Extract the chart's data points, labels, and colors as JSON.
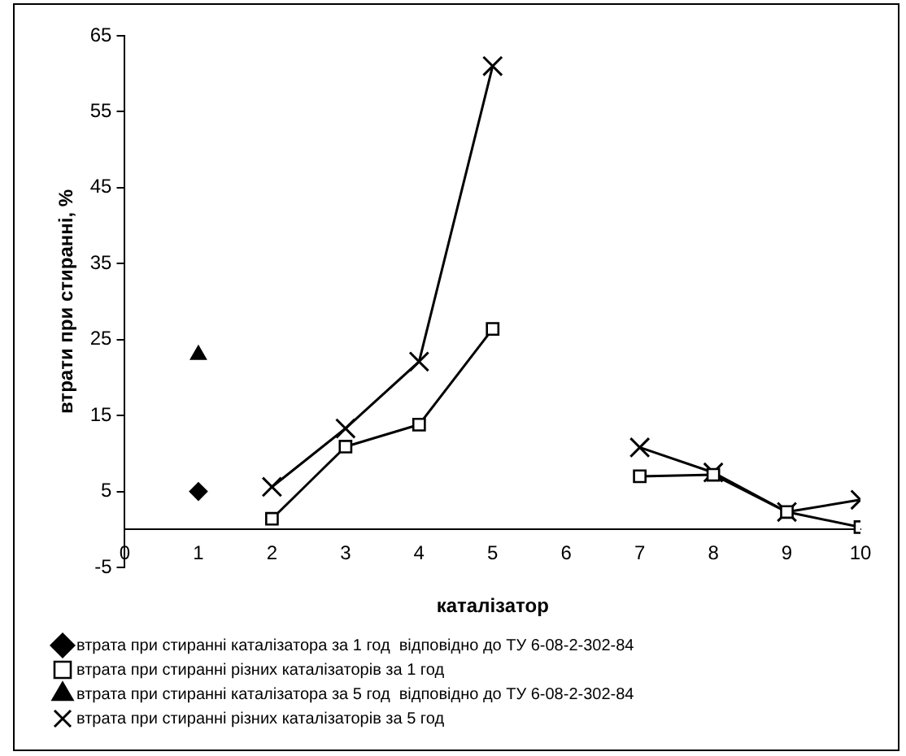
{
  "chart_data": {
    "type": "line",
    "xlabel": "каталізатор",
    "ylabel": "втрати при стиранні, %",
    "xlim": [
      0,
      10
    ],
    "xticks": [
      0,
      1,
      2,
      3,
      4,
      5,
      6,
      7,
      8,
      9,
      10
    ],
    "ylim": [
      -5,
      65
    ],
    "yticks": [
      -5,
      5,
      15,
      25,
      35,
      45,
      55,
      65
    ],
    "grid": false,
    "legend": "bottom",
    "line_style": "solid",
    "series": [
      {
        "name": "втрата при стиранні каталізатора за 1 год  відповідно до ТУ 6-08-2-302-84",
        "color": "#000000",
        "marker": "diamond",
        "x": [
          1
        ],
        "values": [
          5
        ]
      },
      {
        "name": "втрата при стиранні різних каталізаторів за 1 год",
        "color": "#000000",
        "marker": "square",
        "x": [
          2,
          3,
          4,
          5,
          6,
          7,
          8,
          9,
          10
        ],
        "values": [
          1.4,
          10.9,
          13.8,
          26.4,
          null,
          7,
          7.2,
          2.3,
          0.3
        ]
      },
      {
        "name": "втрата при стиранні каталізатора за 5 год  відповідно до ТУ 6-08-2-302-84",
        "color": "#000000",
        "marker": "triangle",
        "x": [
          1
        ],
        "values": [
          23
        ]
      },
      {
        "name": "втрата при стиранні різних каталізаторів за 5 год",
        "color": "#000000",
        "marker": "cross",
        "x": [
          2,
          3,
          4,
          5,
          6,
          7,
          8,
          9,
          10
        ],
        "values": [
          5.6,
          13.3,
          22.1,
          61,
          null,
          10.8,
          7.5,
          2.3,
          3.9
        ]
      }
    ]
  }
}
